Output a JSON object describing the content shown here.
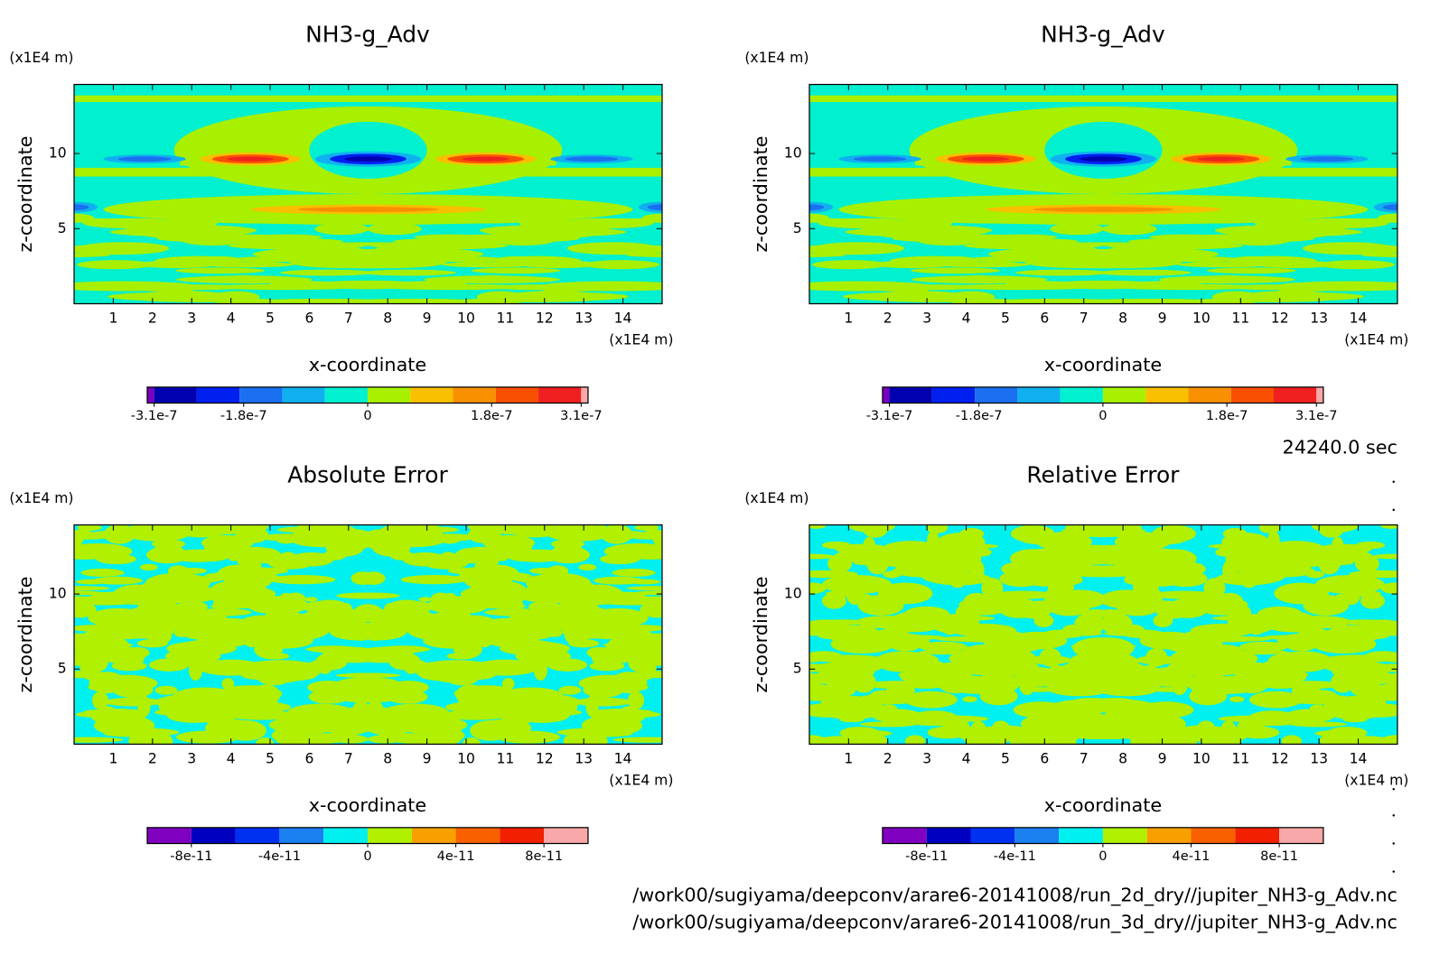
{
  "chart_data": [
    {
      "type": "contour",
      "title": "NH3-g_Adv",
      "xlabel": "x-coordinate",
      "ylabel": "z-coordinate",
      "xunit": "(x1E4 m)",
      "yunit": "(x1E4 m)",
      "xlim": [
        0,
        15
      ],
      "ylim": [
        0,
        14.6
      ],
      "xticks": [
        1,
        2,
        3,
        4,
        5,
        6,
        7,
        8,
        9,
        10,
        11,
        12,
        13,
        14
      ],
      "yticks": [
        5,
        10
      ],
      "colorbar": {
        "boundaries": [
          -3.2e-07,
          -3.1e-07,
          -2.48e-07,
          -1.86e-07,
          -1.24e-07,
          -6.2e-08,
          0,
          6.2e-08,
          1.24e-07,
          1.86e-07,
          2.48e-07,
          3.1e-07,
          3.2e-07
        ],
        "colors": [
          "#7a00c0",
          "#0000b0",
          "#0020f0",
          "#1a70f0",
          "#10b0f0",
          "#00f0d0",
          "#a8f000",
          "#f8c000",
          "#f89000",
          "#f85000",
          "#f02020",
          "#f8a8a8"
        ],
        "ticks": [
          {
            "value": -3.1e-07,
            "label": "-3.1e-7"
          },
          {
            "value": -1.8e-07,
            "label": "-1.8e-7"
          },
          0,
          {
            "value": 1.8e-07,
            "label": "1.8e-7"
          },
          {
            "value": 3.1e-07,
            "label": "3.1e-7"
          }
        ]
      }
    },
    {
      "type": "contour",
      "title": "NH3-g_Adv",
      "xlabel": "x-coordinate",
      "ylabel": "z-coordinate",
      "xunit": "(x1E4 m)",
      "yunit": "(x1E4 m)",
      "xlim": [
        0,
        15
      ],
      "ylim": [
        0,
        14.6
      ],
      "xticks": [
        1,
        2,
        3,
        4,
        5,
        6,
        7,
        8,
        9,
        10,
        11,
        12,
        13,
        14
      ],
      "yticks": [
        5,
        10
      ],
      "colorbar": {
        "boundaries": [
          -3.2e-07,
          -3.1e-07,
          -2.48e-07,
          -1.86e-07,
          -1.24e-07,
          -6.2e-08,
          0,
          6.2e-08,
          1.24e-07,
          1.86e-07,
          2.48e-07,
          3.1e-07,
          3.2e-07
        ],
        "colors": [
          "#7a00c0",
          "#0000b0",
          "#0020f0",
          "#1a70f0",
          "#10b0f0",
          "#00f0d0",
          "#a8f000",
          "#f8c000",
          "#f89000",
          "#f85000",
          "#f02020",
          "#f8a8a8"
        ],
        "ticks": [
          {
            "value": -3.1e-07,
            "label": "-3.1e-7"
          },
          {
            "value": -1.8e-07,
            "label": "-1.8e-7"
          },
          0,
          {
            "value": 1.8e-07,
            "label": "1.8e-7"
          },
          {
            "value": 3.1e-07,
            "label": "3.1e-7"
          }
        ]
      }
    },
    {
      "type": "contour",
      "title": "Absolute Error",
      "xlabel": "x-coordinate",
      "ylabel": "z-coordinate",
      "xunit": "(x1E4 m)",
      "yunit": "(x1E4 m)",
      "xlim": [
        0,
        15
      ],
      "ylim": [
        0,
        14.6
      ],
      "xticks": [
        1,
        2,
        3,
        4,
        5,
        6,
        7,
        8,
        9,
        10,
        11,
        12,
        13,
        14
      ],
      "yticks": [
        5,
        10
      ],
      "colorbar": {
        "boundaries": [
          -1e-10,
          -8e-11,
          -6e-11,
          -4e-11,
          -2e-11,
          0,
          2e-11,
          4e-11,
          6e-11,
          8e-11,
          1e-10
        ],
        "colors": [
          "#8000c0",
          "#0000c0",
          "#0030f0",
          "#1a80f0",
          "#00f0f0",
          "#b0f000",
          "#f8a000",
          "#f86000",
          "#f02000",
          "#f8a8a8"
        ],
        "ticks": [
          {
            "value": -8e-11,
            "label": "-8e-11"
          },
          {
            "value": -4e-11,
            "label": "-4e-11"
          },
          0,
          {
            "value": 4e-11,
            "label": "4e-11"
          },
          {
            "value": 8e-11,
            "label": "8e-11"
          }
        ]
      }
    },
    {
      "type": "contour",
      "title": "Relative Error",
      "xlabel": "x-coordinate",
      "ylabel": "z-coordinate",
      "xunit": "(x1E4 m)",
      "yunit": "(x1E4 m)",
      "xlim": [
        0,
        15
      ],
      "ylim": [
        0,
        14.6
      ],
      "xticks": [
        1,
        2,
        3,
        4,
        5,
        6,
        7,
        8,
        9,
        10,
        11,
        12,
        13,
        14
      ],
      "yticks": [
        5,
        10
      ],
      "colorbar": {
        "boundaries": [
          -1e-10,
          -8e-11,
          -6e-11,
          -4e-11,
          -2e-11,
          0,
          2e-11,
          4e-11,
          6e-11,
          8e-11,
          1e-10
        ],
        "colors": [
          "#8000c0",
          "#0000c0",
          "#0030f0",
          "#1a80f0",
          "#00f0f0",
          "#b0f000",
          "#f8a000",
          "#f86000",
          "#f02000",
          "#f8a8a8"
        ],
        "ticks": [
          {
            "value": -8e-11,
            "label": "-8e-11"
          },
          {
            "value": -4e-11,
            "label": "-4e-11"
          },
          0,
          {
            "value": 4e-11,
            "label": "4e-11"
          },
          {
            "value": 8e-11,
            "label": "8e-11"
          }
        ]
      }
    }
  ],
  "annotation": "24240.0 sec",
  "footnotes": [
    "/work00/sugiyama/deepconv/arare6-20141008/run_2d_dry//jupiter_NH3-g_Adv.nc",
    "/work00/sugiyama/deepconv/arare6-20141008/run_3d_dry//jupiter_NH3-g_Adv.nc"
  ]
}
